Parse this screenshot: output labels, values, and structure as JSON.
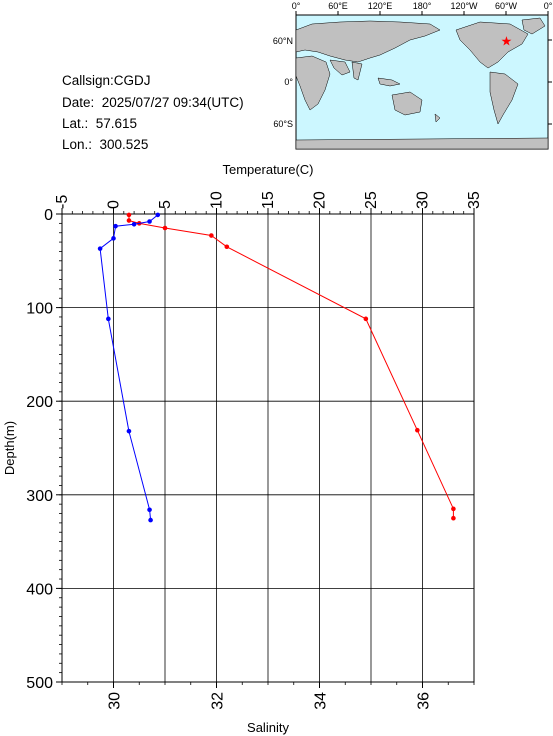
{
  "info": {
    "callsign": "Callsign:CGDJ",
    "date": "Date:  2025/07/27 09:34(UTC)",
    "lat": "Lat.:  57.615",
    "lon": "Lon.:  300.525"
  },
  "map": {
    "top_ticks": [
      "0°",
      "60°E",
      "120°E",
      "180°",
      "120°W",
      "60°W",
      "0°"
    ],
    "left_ticks": [
      "60°N",
      "0°",
      "60°S"
    ],
    "station_lon": 300.525,
    "station_lat": 57.615,
    "colors": {
      "ocean": "#ccf7ff",
      "land": "#c0c0c0",
      "marker": "#ff0000"
    }
  },
  "chart_data": {
    "type": "line",
    "title": "",
    "x_top_label": "Temperature(C)",
    "x_top_ticks": [
      "-5",
      "0",
      "5",
      "10",
      "15",
      "20",
      "25",
      "30",
      "35"
    ],
    "x_top_range": [
      -5,
      35
    ],
    "x_bottom_label": "Salinity",
    "x_bottom_ticks": [
      "30",
      "32",
      "34",
      "36"
    ],
    "x_bottom_range": [
      29,
      37
    ],
    "ylabel": "Depth(m)",
    "y_ticks": [
      "0",
      "100",
      "200",
      "300",
      "400",
      "500"
    ],
    "ylim": [
      0,
      500
    ],
    "y_inverted": true,
    "grid": true,
    "series": [
      {
        "axis": "bottom",
        "color": "#ff0000",
        "points": [
          {
            "x": 30.3,
            "y": 1
          },
          {
            "x": 30.3,
            "y": 7
          },
          {
            "x": 30.5,
            "y": 10
          },
          {
            "x": 31.0,
            "y": 15
          },
          {
            "x": 31.9,
            "y": 23
          },
          {
            "x": 32.2,
            "y": 35
          },
          {
            "x": 34.9,
            "y": 112
          },
          {
            "x": 35.9,
            "y": 231
          },
          {
            "x": 36.6,
            "y": 315
          },
          {
            "x": 36.6,
            "y": 325
          }
        ]
      },
      {
        "axis": "top",
        "color": "#0000ff",
        "points": [
          {
            "x": 4.3,
            "y": 1
          },
          {
            "x": 3.5,
            "y": 8
          },
          {
            "x": 2.0,
            "y": 11
          },
          {
            "x": 0.2,
            "y": 13
          },
          {
            "x": 0.0,
            "y": 26
          },
          {
            "x": -1.3,
            "y": 37
          },
          {
            "x": -0.5,
            "y": 112
          },
          {
            "x": 1.5,
            "y": 232
          },
          {
            "x": 3.5,
            "y": 316
          },
          {
            "x": 3.6,
            "y": 327
          }
        ]
      }
    ]
  }
}
